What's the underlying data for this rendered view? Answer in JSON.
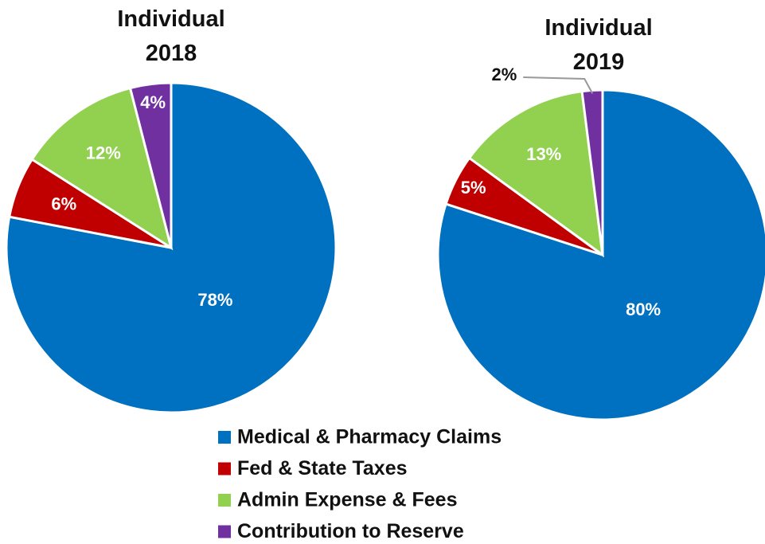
{
  "chart_data": [
    {
      "type": "pie",
      "title": "Individual 2018",
      "categories": [
        "Medical & Pharmacy Claims",
        "Fed & State Taxes",
        "Admin Expense & Fees",
        "Contribution to Reserve"
      ],
      "values": [
        78,
        6,
        12,
        4
      ],
      "value_labels": [
        "78%",
        "6%",
        "12%",
        "4%"
      ],
      "colors": [
        "#0070c0",
        "#c00000",
        "#92d050",
        "#7030a0"
      ]
    },
    {
      "type": "pie",
      "title": "Individual 2019",
      "categories": [
        "Medical & Pharmacy Claims",
        "Fed & State Taxes",
        "Admin Expense & Fees",
        "Contribution to Reserve"
      ],
      "values": [
        80,
        5,
        13,
        2
      ],
      "value_labels": [
        "80%",
        "5%",
        "13%",
        "2%"
      ],
      "colors": [
        "#0070c0",
        "#c00000",
        "#92d050",
        "#7030a0"
      ]
    }
  ]
}
